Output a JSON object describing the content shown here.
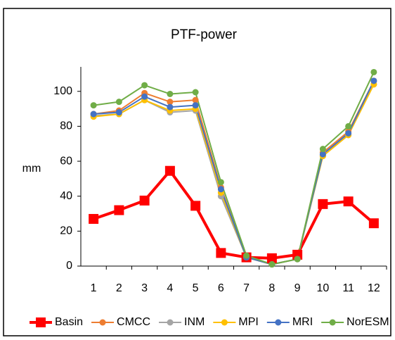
{
  "chart_data": {
    "type": "line",
    "title": "PTF-power",
    "y_label": "mm",
    "categories": [
      "1",
      "2",
      "3",
      "4",
      "5",
      "6",
      "7",
      "8",
      "9",
      "10",
      "11",
      "12"
    ],
    "ylim": [
      0,
      114
    ],
    "yticks": [
      0,
      20,
      40,
      60,
      80,
      100
    ],
    "series": [
      {
        "name": "Basin",
        "color": "#ff0000",
        "marker": "square",
        "width": 4,
        "values": [
          27,
          32,
          37.5,
          54.5,
          34.5,
          7.5,
          5,
          4.5,
          6.5,
          35.5,
          37,
          24.5
        ]
      },
      {
        "name": "CMCC",
        "color": "#ed7d31",
        "marker": "circle",
        "width": 2,
        "values": [
          87,
          89,
          99,
          94,
          95,
          45,
          5,
          1,
          4,
          65,
          77,
          106
        ]
      },
      {
        "name": "INM",
        "color": "#a5a5a5",
        "marker": "circle",
        "width": 2,
        "values": [
          86,
          87,
          95,
          88,
          89,
          40,
          5,
          1,
          4,
          63,
          75,
          104
        ]
      },
      {
        "name": "MPI",
        "color": "#ffc000",
        "marker": "circle",
        "width": 2,
        "values": [
          85.5,
          87,
          95,
          89,
          90,
          42,
          5,
          1,
          4,
          63,
          75,
          104
        ]
      },
      {
        "name": "MRI",
        "color": "#4472c4",
        "marker": "circle",
        "width": 2,
        "values": [
          87,
          88,
          97,
          91,
          92,
          44,
          5,
          1,
          4,
          64,
          76,
          106
        ]
      },
      {
        "name": "NorESM",
        "color": "#70ad47",
        "marker": "circle",
        "width": 2,
        "values": [
          92,
          94,
          103.5,
          98.5,
          99.5,
          48,
          6,
          1,
          4,
          67,
          80,
          111
        ]
      }
    ]
  }
}
